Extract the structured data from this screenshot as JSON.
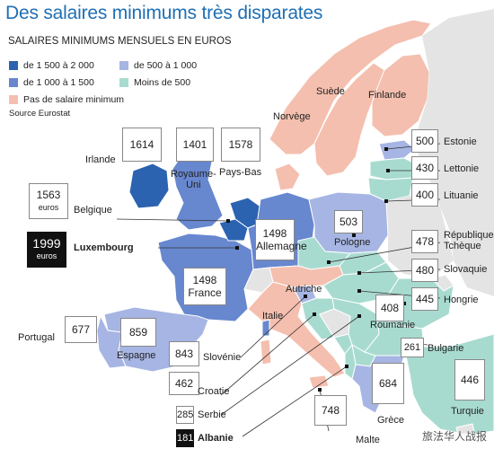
{
  "title": "Des salaires minimums très disparates",
  "subtitle": "SALAIRES MINIMUMS MENSUELS EN EUROS",
  "source": "Source Eurostat",
  "watermark": "旅法华人战报",
  "legend": [
    {
      "label": "de 1 500 à 2 000",
      "color": "#2b63b0"
    },
    {
      "label": "de 500 à 1 000",
      "color": "#a6b5e3"
    },
    {
      "label": "de 1 000 à 1 500",
      "color": "#6787cf"
    },
    {
      "label": "Moins de 500",
      "color": "#a8dbd0"
    },
    {
      "label": "Pas de salaire minimum",
      "color": "#f4bfae"
    }
  ],
  "countries": {
    "irlande": {
      "name": "Irlande",
      "value": "1614"
    },
    "royaume_uni": {
      "name": "Royaume-\nUni",
      "value": "1401"
    },
    "pays_bas": {
      "name": "Pays-Bas",
      "value": "1578"
    },
    "belgique": {
      "name": "Belgique",
      "value": "1563",
      "unit": "euros"
    },
    "luxembourg": {
      "name": "Luxembourg",
      "value": "1999",
      "unit": "euros"
    },
    "allemagne": {
      "name": "Allemagne",
      "value": "1498"
    },
    "france": {
      "name": "France",
      "value": "1498"
    },
    "portugal": {
      "name": "Portugal",
      "value": "677"
    },
    "espagne": {
      "name": "Espagne",
      "value": "859"
    },
    "slovenie": {
      "name": "Slovénie",
      "value": "843"
    },
    "croatie": {
      "name": "Croatie",
      "value": "462"
    },
    "serbie": {
      "name": "Serbie",
      "value": "285"
    },
    "albanie": {
      "name": "Albanie",
      "value": "181"
    },
    "malte": {
      "name": "Malte",
      "value": "748"
    },
    "grece": {
      "name": "Grèce",
      "value": "684"
    },
    "turquie": {
      "name": "Turquie",
      "value": "446"
    },
    "bulgarie": {
      "name": "Bulgarie",
      "value": "261"
    },
    "roumanie": {
      "name": "Roumanie",
      "value": "408"
    },
    "hongrie": {
      "name": "Hongrie",
      "value": "445"
    },
    "slovaquie": {
      "name": "Slovaquie",
      "value": "480"
    },
    "tcheque": {
      "name": "République\nTchèque",
      "value": "478"
    },
    "pologne": {
      "name": "Pologne",
      "value": "503"
    },
    "lituanie": {
      "name": "Lituanie",
      "value": "400"
    },
    "lettonie": {
      "name": "Lettonie",
      "value": "430"
    },
    "estonie": {
      "name": "Estonie",
      "value": "500"
    },
    "autriche": {
      "name": "Autriche"
    },
    "italie": {
      "name": "Italie"
    },
    "suede": {
      "name": "Suède"
    },
    "finlande": {
      "name": "Finlande"
    },
    "norvege": {
      "name": "Norvège"
    }
  }
}
